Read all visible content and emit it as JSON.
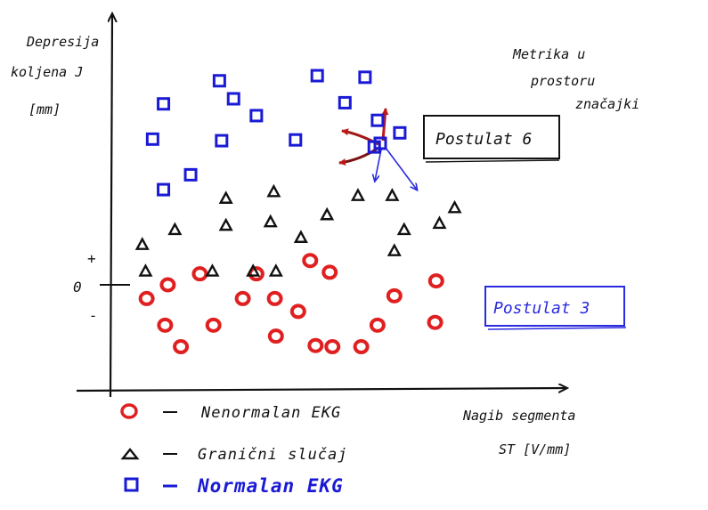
{
  "chart_data": {
    "type": "scatter",
    "ylabel": [
      "Depresija",
      "koljena J",
      "[mm]"
    ],
    "xlabel": [
      "Nagib segmenta",
      "ST [V/mm]"
    ],
    "y_ticks": [
      {
        "label": "+",
        "value": 0.45
      },
      {
        "label": "0",
        "value": 0
      },
      {
        "label": "-",
        "value": -0.45
      }
    ],
    "xlim": [
      0,
      10
    ],
    "ylim": [
      -2.6,
      6.4
    ],
    "annotations": {
      "metrika": [
        "Metrika u",
        "prostoru",
        "značajki"
      ],
      "postulat6": "Postulat 6",
      "postulat3": "Postulat 3"
    },
    "series": [
      {
        "name": "Nenormalan EKG",
        "marker": "circle",
        "color": "#e02020",
        "points": [
          [
            0.65,
            -0.35
          ],
          [
            1.04,
            0
          ],
          [
            1.63,
            0.28
          ],
          [
            2.42,
            -0.35
          ],
          [
            2.67,
            0.28
          ],
          [
            3.66,
            0.62
          ],
          [
            3.01,
            -0.35
          ],
          [
            3.44,
            -0.68
          ],
          [
            4.02,
            0.32
          ],
          [
            5.21,
            -0.28
          ],
          [
            5.98,
            0.1
          ],
          [
            0.99,
            -1.03
          ],
          [
            1.88,
            -1.03
          ],
          [
            3.03,
            -1.31
          ],
          [
            3.76,
            -1.55
          ],
          [
            4.9,
            -1.03
          ],
          [
            5.96,
            -0.96
          ],
          [
            1.28,
            -1.58
          ],
          [
            4.07,
            -1.58
          ],
          [
            4.6,
            -1.58
          ]
        ]
      },
      {
        "name": "Granični slučaj",
        "marker": "triangle",
        "color": "#111111",
        "points": [
          [
            0.63,
            0.35
          ],
          [
            0.57,
            1.03
          ],
          [
            1.17,
            1.41
          ],
          [
            2.11,
            1.52
          ],
          [
            2.93,
            1.61
          ],
          [
            3.49,
            1.21
          ],
          [
            3.97,
            1.79
          ],
          [
            4.54,
            2.28
          ],
          [
            5.39,
            1.41
          ],
          [
            6.04,
            1.57
          ],
          [
            5.21,
            0.87
          ],
          [
            2.11,
            2.21
          ],
          [
            2.99,
            2.38
          ],
          [
            5.17,
            2.28
          ],
          [
            6.32,
            1.97
          ],
          [
            1.86,
            0.35
          ],
          [
            2.61,
            0.35
          ],
          [
            3.03,
            0.35
          ]
        ]
      },
      {
        "name": "Normalan EKG",
        "marker": "square",
        "color": "#1a1ad6",
        "points": [
          [
            0.96,
            4.62
          ],
          [
            0.76,
            3.72
          ],
          [
            2.03,
            3.68
          ],
          [
            2.67,
            4.32
          ],
          [
            2.25,
            4.75
          ],
          [
            1.99,
            5.21
          ],
          [
            3.79,
            5.34
          ],
          [
            4.67,
            5.3
          ],
          [
            4.9,
            4.2
          ],
          [
            3.39,
            3.7
          ],
          [
            4.3,
            4.65
          ],
          [
            1.46,
            2.81
          ],
          [
            0.96,
            2.43
          ],
          [
            4.84,
            3.52
          ],
          [
            5.31,
            3.88
          ]
        ]
      }
    ],
    "legend": [
      {
        "marker": "circle",
        "label": "Nenormalan EKG"
      },
      {
        "marker": "triangle",
        "label": "Granični slučaj"
      },
      {
        "marker": "square",
        "label": "Normalan EKG"
      }
    ]
  }
}
